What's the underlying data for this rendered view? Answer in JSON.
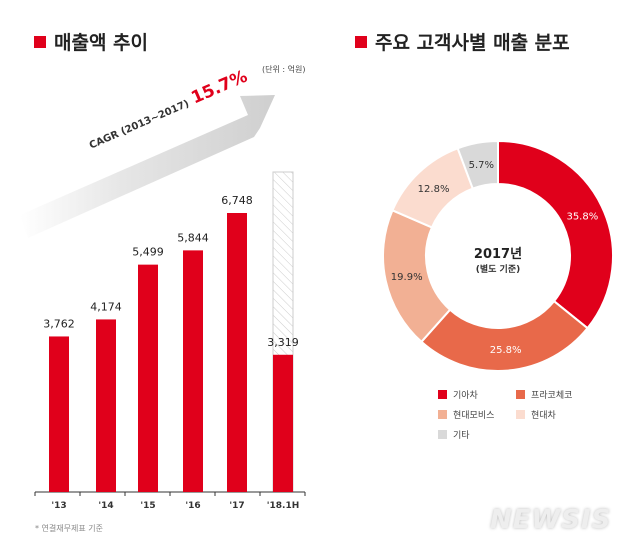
{
  "left": {
    "title": "매출액 추이",
    "unit": "(단위 : 억원)",
    "cagr_label": "CAGR (2013~2017)",
    "cagr_value": "15.7%",
    "footnote": "* 연결재무제표 기준"
  },
  "right": {
    "title": "주요 고객사별 매출 분포",
    "center_year": "2017년",
    "center_sub": "(별도 기준)"
  },
  "watermark": "NEWSIS",
  "chart_data": [
    {
      "type": "bar",
      "title": "매출액 추이",
      "categories": [
        "'13",
        "'14",
        "'15",
        "'16",
        "'17",
        "'18.1H"
      ],
      "values": [
        3762,
        4174,
        5499,
        5844,
        6748,
        3319
      ],
      "value_labels": [
        "3,762",
        "4,174",
        "5,499",
        "5,844",
        "6,748",
        "3,319"
      ],
      "ylabel": "(단위 : 억원)",
      "ylim": [
        0,
        6748
      ],
      "color": "#e0001b",
      "notes": "'18.1H bar accompanied by hatched full-year projection outline"
    },
    {
      "type": "pie",
      "title": "주요 고객사별 매출 분포",
      "donut": true,
      "labels": [
        "기아차",
        "프라코체코",
        "현대모비스",
        "현대차",
        "기타"
      ],
      "values": [
        35.8,
        25.8,
        19.9,
        12.8,
        5.7
      ],
      "value_labels": [
        "35.8%",
        "25.8%",
        "19.9%",
        "12.8%",
        "5.7%"
      ],
      "colors": [
        "#e0001b",
        "#e8694a",
        "#f2b094",
        "#fbdccf",
        "#d9d9d9"
      ],
      "legend": "bottom"
    }
  ]
}
